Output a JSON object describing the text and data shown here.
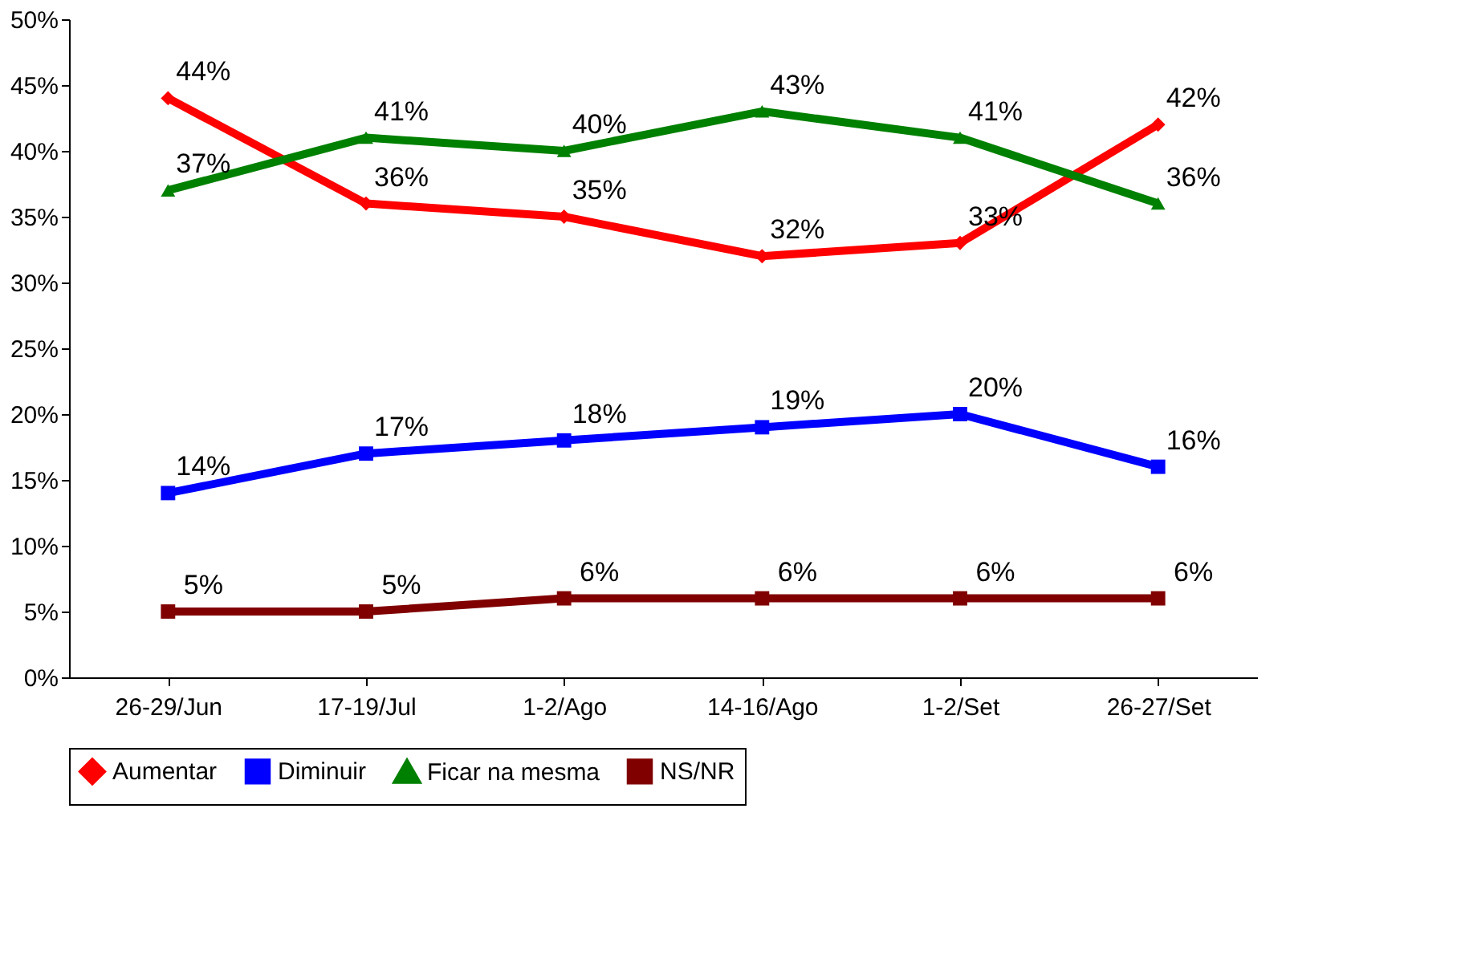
{
  "chart_data": {
    "type": "line",
    "categories": [
      "26-29/Jun",
      "17-19/Jul",
      "1-2/Ago",
      "14-16/Ago",
      "1-2/Set",
      "26-27/Set"
    ],
    "series": [
      {
        "name": "Aumentar",
        "color": "#ff0000",
        "marker": "diamond",
        "values": [
          44,
          36,
          35,
          32,
          33,
          42
        ],
        "value_labels": [
          "44%",
          "36%",
          "35%",
          "32%",
          "33%",
          "42%"
        ]
      },
      {
        "name": "Diminuir",
        "color": "#0000ff",
        "marker": "square",
        "values": [
          14,
          17,
          18,
          19,
          20,
          16
        ],
        "value_labels": [
          "14%",
          "17%",
          "18%",
          "19%",
          "20%",
          "16%"
        ]
      },
      {
        "name": "Ficar na mesma",
        "color": "#008000",
        "marker": "triangle",
        "values": [
          37,
          41,
          40,
          43,
          41,
          36
        ],
        "value_labels": [
          "37%",
          "41%",
          "40%",
          "43%",
          "41%",
          "36%"
        ]
      },
      {
        "name": "NS/NR",
        "color": "#800000",
        "marker": "square",
        "values": [
          5,
          5,
          6,
          6,
          6,
          6
        ],
        "value_labels": [
          "5%",
          "5%",
          "6%",
          "6%",
          "6%",
          "6%"
        ]
      }
    ],
    "ylim": [
      0,
      50
    ],
    "yticks": [
      {
        "value": 0,
        "label": "0%"
      },
      {
        "value": 5,
        "label": "5%"
      },
      {
        "value": 10,
        "label": "10%"
      },
      {
        "value": 15,
        "label": "15%"
      },
      {
        "value": 20,
        "label": "20%"
      },
      {
        "value": 25,
        "label": "25%"
      },
      {
        "value": 30,
        "label": "30%"
      },
      {
        "value": 35,
        "label": "35%"
      },
      {
        "value": 40,
        "label": "40%"
      },
      {
        "value": 45,
        "label": "45%"
      },
      {
        "value": 50,
        "label": "50%"
      }
    ],
    "grid": false,
    "legend": "bottom",
    "line_style": "solid"
  }
}
